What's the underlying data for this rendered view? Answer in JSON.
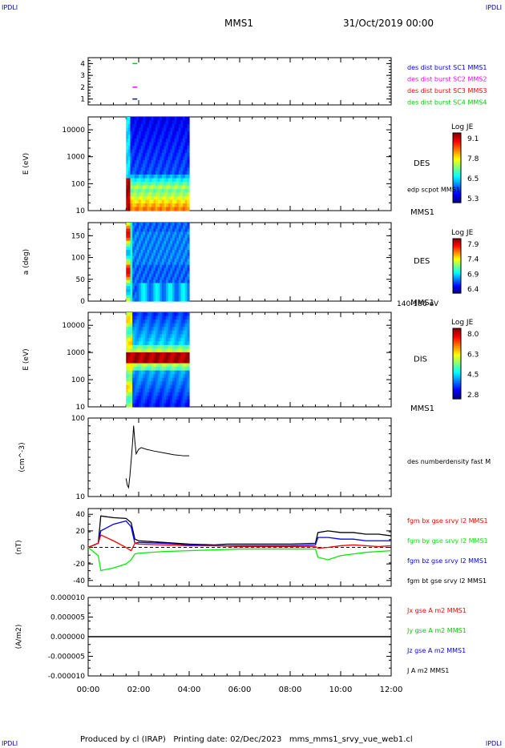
{
  "corners": {
    "tl": "IPDLI",
    "tr": "IPDLI",
    "bl": "IPDLI",
    "br": "IPDLI"
  },
  "header": {
    "spacecraft": "MMS1",
    "datetime": "31/Oct/2019 00:00"
  },
  "footer": {
    "text": "Produced by cl (IRAP)   Printing date: 02/Dec/2023   mms_mms1_srvy_vue_web1.cl"
  },
  "time_axis": {
    "ticks": [
      "00:00",
      "02:00",
      "04:00",
      "06:00",
      "08:00",
      "10:00",
      "12:00"
    ]
  },
  "colors": {
    "mms1": "#0000ff",
    "mms2": "#ff00ff",
    "mms3": "#ff0000",
    "mms4": "#00cc00",
    "bx": "#ff0000",
    "by": "#00ee00",
    "bz": "#0000ff",
    "bt": "#000000"
  },
  "chart_data": [
    {
      "type": "scatter",
      "name": "burst",
      "yticks": [
        "4",
        "3",
        "2",
        "1"
      ],
      "ylim": [
        0.5,
        4.5
      ],
      "markers": [
        {
          "sc": 4,
          "time_h": 1.85
        },
        {
          "sc": 2,
          "time_h": 1.85
        },
        {
          "sc": 1,
          "time_h": 1.85
        }
      ],
      "legend": [
        {
          "text": "des dist burst SC1 MMS1",
          "color": "#0000ff"
        },
        {
          "text": "des dist burst SC2 MMS2",
          "color": "#ff00ff"
        },
        {
          "text": "des dist burst SC3 MMS3",
          "color": "#ff0000"
        },
        {
          "text": "des dist burst SC4 MMS4",
          "color": "#00cc00"
        }
      ]
    },
    {
      "type": "heatmap",
      "name": "des-energy",
      "ylabel": "E (eV)",
      "yticks": [
        "10000",
        "1000",
        "100",
        "10"
      ],
      "ylim": [
        10,
        30000
      ],
      "yscale": "log",
      "time_range_h": [
        1.5,
        4.0
      ],
      "label": "DES",
      "overlay": "edp scpot MMS1",
      "mms_label": "MMS1",
      "colorbar": {
        "title": "Log JE",
        "ticks": [
          "9.1",
          "7.8",
          "6.5",
          "5.3"
        ]
      }
    },
    {
      "type": "heatmap",
      "name": "des-pitch",
      "ylabel": "a (deg)",
      "yticks": [
        "150",
        "100",
        "50",
        "0"
      ],
      "ylim": [
        0,
        180
      ],
      "time_range_h": [
        1.5,
        4.0
      ],
      "label": "DES",
      "mms_label": "MMS1",
      "energy_range": "140-186 eV",
      "colorbar": {
        "title": "Log JE",
        "ticks": [
          "7.9",
          "7.4",
          "6.9",
          "6.4"
        ]
      }
    },
    {
      "type": "heatmap",
      "name": "dis-energy",
      "ylabel": "E (eV)",
      "yticks": [
        "10000",
        "1000",
        "100",
        "10"
      ],
      "ylim": [
        10,
        30000
      ],
      "yscale": "log",
      "time_range_h": [
        1.5,
        4.0
      ],
      "label": "DIS",
      "mms_label": "MMS1",
      "colorbar": {
        "title": "Log JE",
        "ticks": [
          "8.0",
          "6.3",
          "4.5",
          "2.8"
        ]
      }
    },
    {
      "type": "line",
      "name": "density",
      "ylabel": "(cm^-3)",
      "yticks": [
        "100",
        "10"
      ],
      "ylim": [
        10,
        100
      ],
      "yscale": "log",
      "series": [
        {
          "name": "des numberdensity fast M",
          "color": "#000000",
          "x": [
            1.5,
            1.55,
            1.6,
            1.65,
            1.7,
            1.75,
            1.8,
            1.85,
            1.9,
            2.0,
            2.1,
            2.3,
            2.6,
            3.0,
            3.4,
            3.8,
            4.0
          ],
          "y": [
            17,
            14,
            13,
            18,
            28,
            45,
            80,
            50,
            35,
            40,
            42,
            40,
            38,
            36,
            34,
            33,
            33
          ]
        }
      ]
    },
    {
      "type": "line",
      "name": "magnetic-field",
      "ylabel": "(nT)",
      "yticks": [
        "40",
        "20",
        "0",
        "-20",
        "-40"
      ],
      "ylim": [
        -47,
        47
      ],
      "legend": [
        {
          "text": "fgm bx gse srvy l2 MMS1",
          "color": "#ff0000"
        },
        {
          "text": "fgm by gse srvy l2 MMS1",
          "color": "#00ee00"
        },
        {
          "text": "fgm bz gse srvy l2 MMS1",
          "color": "#0000ff"
        },
        {
          "text": "fgm bt gse srvy l2 MMS1",
          "color": "#000000"
        }
      ],
      "series": [
        {
          "name": "bt",
          "color": "#000000",
          "x": [
            0,
            0.4,
            0.5,
            1.0,
            1.5,
            1.7,
            1.85,
            2.0,
            3.0,
            4.0,
            5.0,
            5.5,
            6.0,
            7.0,
            8.0,
            9.0,
            9.1,
            9.5,
            10.0,
            10.5,
            11.0,
            11.5,
            12.0
          ],
          "y": [
            0,
            5,
            38,
            36,
            35,
            30,
            10,
            8,
            6,
            4,
            3,
            4,
            4,
            4,
            4,
            5,
            18,
            20,
            18,
            18,
            16,
            16,
            14
          ]
        },
        {
          "name": "bz",
          "color": "#0000ff",
          "x": [
            0,
            0.4,
            0.5,
            1.0,
            1.5,
            1.7,
            1.85,
            2.0,
            3.0,
            4.0,
            5.0,
            6.0,
            7.0,
            8.0,
            9.0,
            9.1,
            9.5,
            10.0,
            10.5,
            11.0,
            11.5,
            12.0
          ],
          "y": [
            0,
            5,
            20,
            28,
            32,
            25,
            5,
            6,
            5,
            3,
            2,
            2,
            2,
            2,
            3,
            12,
            12,
            10,
            10,
            8,
            8,
            8
          ]
        },
        {
          "name": "bx",
          "color": "#ff0000",
          "x": [
            0,
            0.4,
            0.5,
            1.0,
            1.5,
            1.7,
            1.85,
            2.0,
            3.0,
            4.0,
            5.0,
            6.0,
            7.0,
            8.0,
            9.0,
            9.1,
            9.5,
            10.0,
            10.5,
            11.0,
            11.5,
            12.0
          ],
          "y": [
            0,
            5,
            15,
            8,
            0,
            -4,
            5,
            4,
            3,
            2,
            2,
            1,
            1,
            1,
            1,
            -1,
            0,
            2,
            3,
            2,
            1,
            2
          ]
        },
        {
          "name": "by",
          "color": "#00ee00",
          "x": [
            0,
            0.4,
            0.5,
            1.0,
            1.5,
            1.7,
            1.85,
            2.0,
            3.0,
            4.0,
            5.0,
            6.0,
            7.0,
            8.0,
            9.0,
            9.1,
            9.5,
            10.0,
            10.5,
            11.0,
            11.5,
            12.0
          ],
          "y": [
            0,
            -10,
            -28,
            -25,
            -20,
            -15,
            -8,
            -7,
            -5,
            -4,
            -3,
            -2,
            -2,
            -2,
            -2,
            -12,
            -15,
            -10,
            -8,
            -6,
            -5,
            -4
          ]
        }
      ]
    },
    {
      "type": "line",
      "name": "current-density",
      "ylabel": "(A/m2)",
      "yticks": [
        "0.000010",
        "0.000005",
        "0.000000",
        "-0.000005",
        "-0.000010"
      ],
      "ylim": [
        -1e-05,
        1e-05
      ],
      "legend": [
        {
          "text": "Jx gse A m2 MMS1",
          "color": "#ff0000"
        },
        {
          "text": "Jy gse A m2 MMS1",
          "color": "#00cc00"
        },
        {
          "text": "Jz gse A m2 MMS1",
          "color": "#0000ff"
        },
        {
          "text": "J A m2 MMS1",
          "color": "#000000"
        }
      ],
      "series": [
        {
          "name": "J",
          "color": "#000000",
          "x": [
            0,
            12
          ],
          "y": [
            0,
            0
          ]
        }
      ]
    }
  ]
}
